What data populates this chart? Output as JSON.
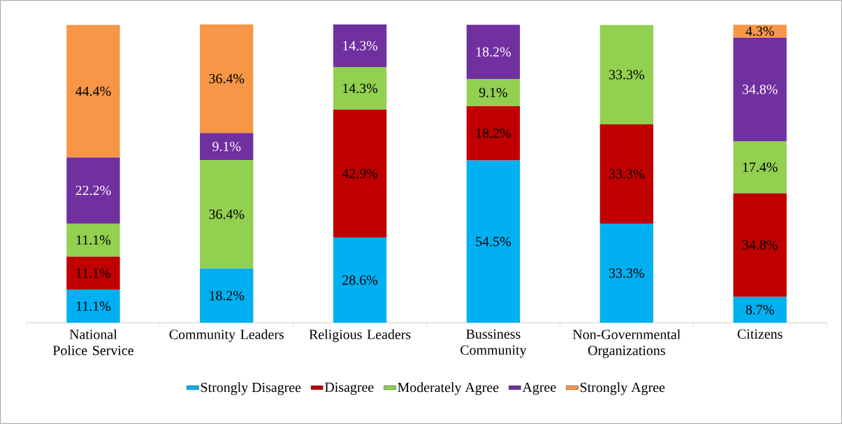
{
  "chart_data": {
    "type": "bar",
    "stacked": true,
    "legend": "bottom",
    "categories": [
      "National Police Service",
      "Community Leaders",
      "Religious Leaders",
      "Bussiness Community",
      "Non-Governmental Organizations",
      "Citizens"
    ],
    "series": [
      {
        "name": "Strongly Disagree",
        "color": "#00b0f0",
        "values": [
          11.1,
          18.2,
          28.6,
          54.5,
          33.3,
          8.7
        ],
        "value_labels": [
          "11.1%",
          "18.2%",
          "28.6%",
          "54.5%",
          "33.3%",
          "8.7%"
        ]
      },
      {
        "name": "Disagree",
        "color": "#c00000",
        "values": [
          11.1,
          null,
          42.9,
          18.2,
          33.3,
          34.8
        ],
        "value_labels": [
          "11.1%",
          null,
          "42.9%",
          "18.2%",
          "33.3%",
          "34.8%"
        ]
      },
      {
        "name": "Moderately Agree",
        "color": "#92d050",
        "values": [
          11.1,
          36.4,
          14.3,
          9.1,
          33.3,
          17.4
        ],
        "value_labels": [
          "11.1%",
          "36.4%",
          "14.3%",
          "9.1%",
          "33.3%",
          "17.4%"
        ]
      },
      {
        "name": "Agree",
        "color": "#7030a0",
        "values": [
          22.2,
          9.1,
          14.3,
          18.2,
          null,
          34.8
        ],
        "value_labels": [
          "22.2%",
          "9.1%",
          "14.3%",
          "18.2%",
          null,
          "34.8%"
        ]
      },
      {
        "name": "Strongly Agree",
        "color": "#f79646",
        "values": [
          44.4,
          36.4,
          null,
          null,
          null,
          4.3
        ],
        "value_labels": [
          "44.4%",
          "36.4%",
          null,
          null,
          null,
          "4.3%"
        ]
      }
    ]
  }
}
